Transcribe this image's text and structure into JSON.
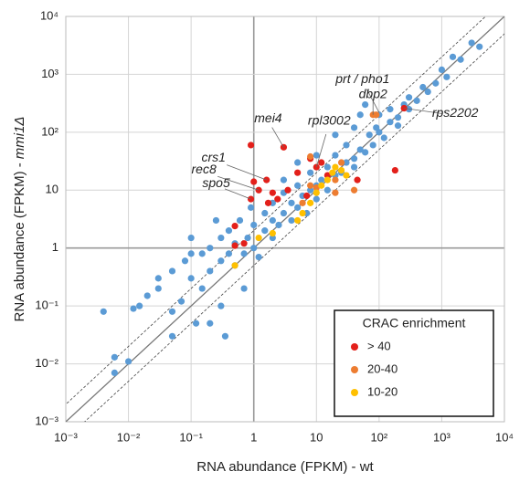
{
  "chart_data": {
    "type": "scatter",
    "x_label": "RNA abundance (FPKM) - wt",
    "y_label": [
      "RNA abundance (FPKM) -",
      "mmi1Δ"
    ],
    "log_x": true,
    "log_y": true,
    "grid": true,
    "fold_lines": 2,
    "xlim": [
      0.001,
      10000
    ],
    "ylim": [
      0.001,
      10000
    ],
    "xticks": [
      {
        "value": 0.001,
        "label": "10⁻³"
      },
      {
        "value": 0.01,
        "label": "10⁻²"
      },
      {
        "value": 0.1,
        "label": "10⁻¹"
      },
      1,
      10,
      {
        "value": 100,
        "label": "10²"
      },
      {
        "value": 1000,
        "label": "10³"
      },
      {
        "value": 10000,
        "label": "10⁴"
      }
    ],
    "yticks": [
      {
        "value": 0.001,
        "label": "10⁻³"
      },
      {
        "value": 0.01,
        "label": "10⁻²"
      },
      {
        "value": 0.1,
        "label": "10⁻¹"
      },
      1,
      10,
      {
        "value": 100,
        "label": "10²"
      },
      {
        "value": 1000,
        "label": "10³"
      },
      {
        "value": 10000,
        "label": "10⁴"
      }
    ],
    "legend_title": "CRAC enrichment",
    "legend_position": "lower right",
    "series": [
      {
        "color": "#5b9bd5",
        "x": [
          0.004,
          0.006,
          0.006,
          0.01,
          0.012,
          0.015,
          0.03,
          0.02,
          0.05,
          0.05,
          0.07,
          0.08,
          0.1,
          0.1,
          0.12,
          0.15,
          0.15,
          0.2,
          0.2,
          0.25,
          0.3,
          0.3,
          0.3,
          0.35,
          0.4,
          0.4,
          0.5,
          0.5,
          0.6,
          0.7,
          0.8,
          0.9,
          1,
          1,
          1.2,
          1.5,
          1.5,
          2,
          2,
          2,
          2.5,
          3,
          3,
          4,
          4,
          5,
          5,
          6,
          7,
          8,
          8,
          10,
          10,
          12,
          15,
          15,
          20,
          20,
          25,
          30,
          30,
          40,
          40,
          50,
          60,
          70,
          80,
          90,
          100,
          100,
          120,
          150,
          150,
          200,
          200,
          250,
          300,
          300,
          400,
          500,
          600,
          800,
          1000,
          1200,
          1500,
          2000,
          3000,
          4000,
          40,
          50,
          60,
          20,
          10,
          5,
          3,
          0.2,
          0.05,
          0.03,
          0.1,
          0.7
        ],
        "y": [
          0.08,
          0.013,
          0.007,
          0.011,
          0.09,
          0.1,
          0.2,
          0.15,
          0.08,
          0.4,
          0.12,
          0.6,
          0.3,
          1.5,
          0.05,
          0.2,
          0.8,
          0.4,
          1,
          3,
          0.6,
          1.5,
          0.1,
          0.03,
          0.8,
          2,
          0.5,
          1.2,
          3,
          0.8,
          1.5,
          5,
          1,
          2.5,
          0.7,
          2,
          4,
          1.5,
          3,
          6,
          2.5,
          4,
          9,
          3,
          6,
          5,
          12,
          8,
          4,
          10,
          20,
          7,
          12,
          15,
          10,
          25,
          18,
          40,
          20,
          30,
          60,
          35,
          25,
          50,
          45,
          90,
          60,
          120,
          100,
          200,
          80,
          150,
          250,
          180,
          130,
          300,
          250,
          400,
          350,
          600,
          500,
          700,
          1200,
          900,
          2000,
          1800,
          3500,
          3000,
          120,
          200,
          300,
          90,
          40,
          30,
          15,
          0.05,
          0.03,
          0.3,
          0.8,
          0.2
        ]
      },
      {
        "name": "> 40",
        "color": "#e3201b",
        "x": [
          0.5,
          0.7,
          0.5,
          0.9,
          1,
          1.2,
          1.6,
          2,
          2.4,
          0.9,
          3,
          5,
          7,
          8,
          10,
          12,
          15,
          45,
          180,
          3.5,
          1.7,
          250
        ],
        "y": [
          2.4,
          1.2,
          1.1,
          7,
          14,
          10,
          15,
          9,
          7,
          60,
          55,
          20,
          8,
          35,
          25,
          30,
          18,
          15,
          22,
          10,
          6,
          260
        ]
      },
      {
        "name": "20-40",
        "color": "#ed7d31",
        "x": [
          8,
          10,
          20,
          20,
          40,
          80,
          90,
          25,
          8,
          6
        ],
        "y": [
          12,
          11,
          15,
          9,
          10,
          200,
          200,
          30,
          38,
          6
        ]
      },
      {
        "name": "10-20",
        "color": "#ffc000",
        "x": [
          0.5,
          2,
          5,
          8,
          10,
          12,
          15,
          18,
          20,
          25,
          30,
          1.2,
          6
        ],
        "y": [
          0.5,
          1.8,
          3,
          6,
          9,
          12,
          15,
          20,
          25,
          22,
          18,
          1.5,
          4
        ]
      }
    ],
    "annotations": [
      {
        "text": "prt / pho1",
        "x": 100,
        "y": 220
      },
      {
        "text": "dbp2",
        "x": 80,
        "y": 200
      },
      {
        "text": "rps2202",
        "x": 250,
        "y": 260
      },
      {
        "text": "mei4",
        "x": 3,
        "y": 55
      },
      {
        "text": "rpl3002",
        "x": 10,
        "y": 25
      },
      {
        "text": "crs1",
        "x": 1.6,
        "y": 15
      },
      {
        "text": "rec8",
        "x": 1.2,
        "y": 10
      },
      {
        "text": "spo5",
        "x": 0.9,
        "y": 7
      }
    ]
  }
}
